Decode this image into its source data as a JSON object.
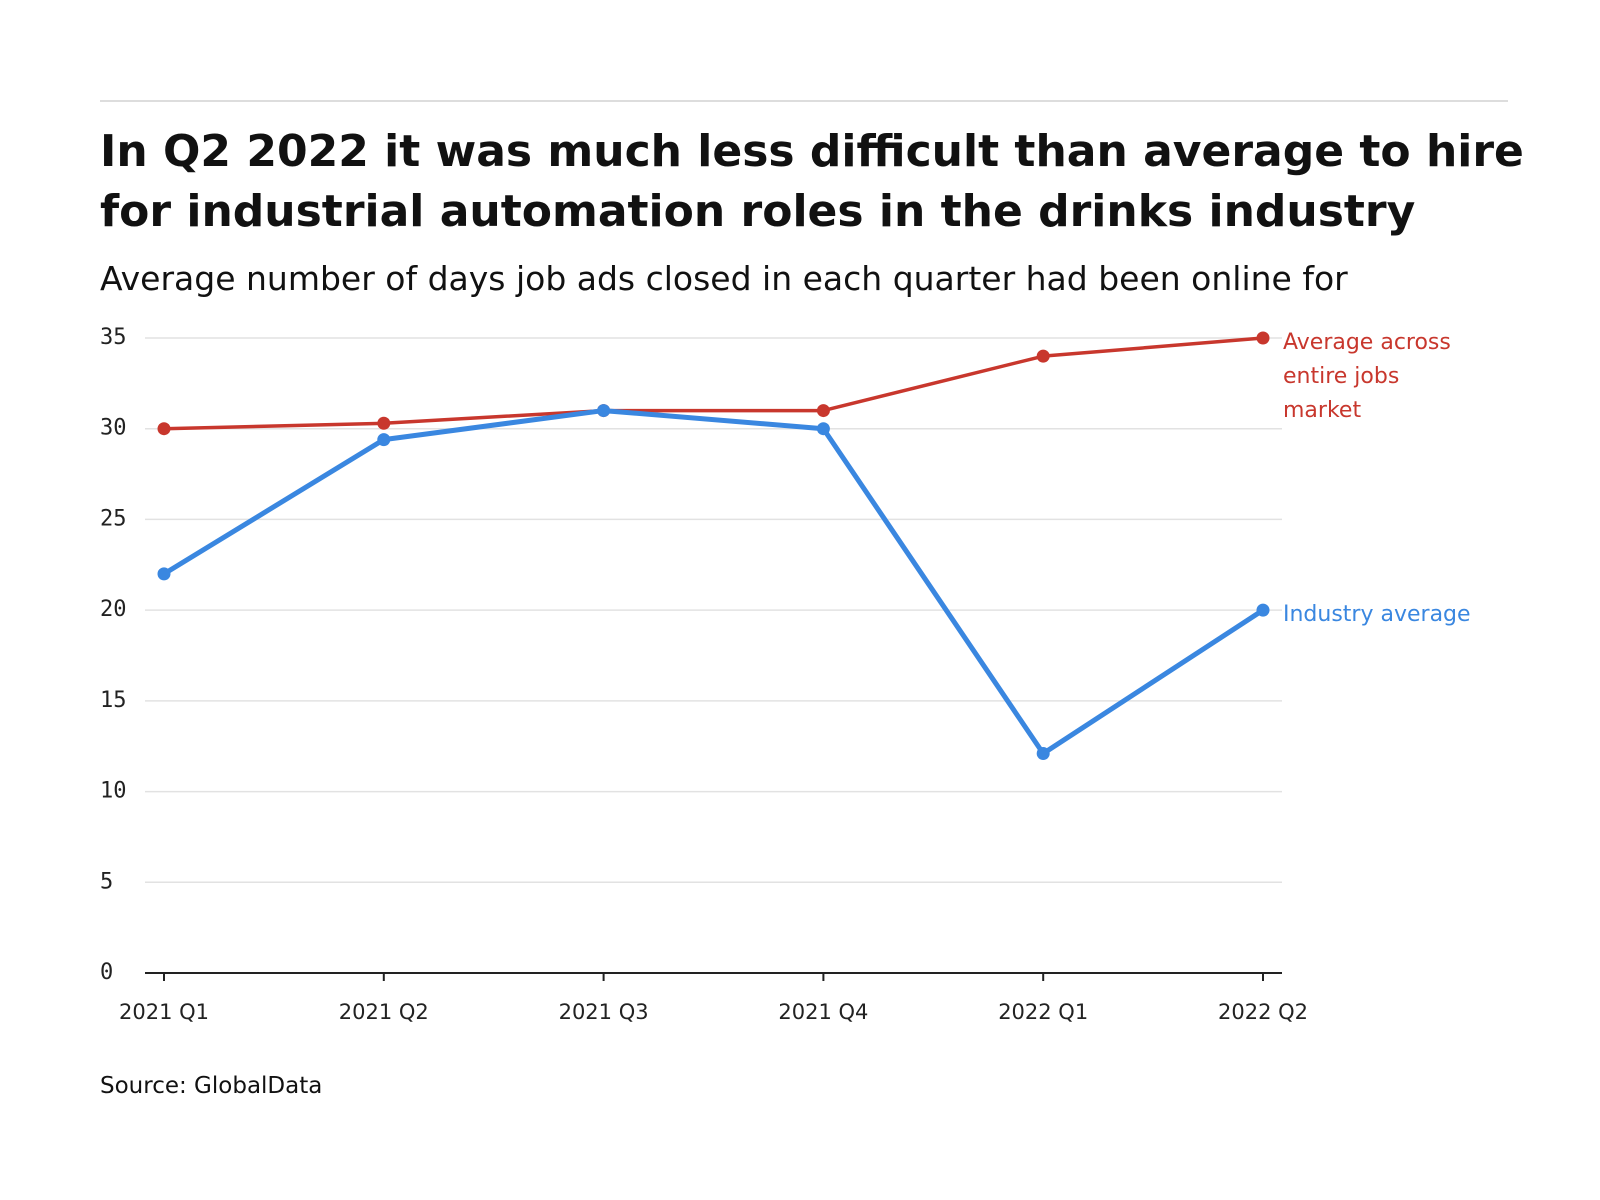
{
  "chart_data": {
    "type": "line",
    "title": "In Q2 2022 it was much less difficult than average to hire for industrial automation roles in the drinks industry",
    "subtitle": "Average number of days job ads closed in each quarter had been online for",
    "source": "Source: GlobalData",
    "categories": [
      "2021 Q1",
      "2021 Q2",
      "2021 Q3",
      "2021 Q4",
      "2022 Q1",
      "2022 Q2"
    ],
    "series": [
      {
        "name": "Average across entire jobs market",
        "color": "#c8372d",
        "values": [
          30,
          30.3,
          31,
          31,
          34,
          35
        ]
      },
      {
        "name": "Industry average",
        "color": "#3a87e0",
        "values": [
          22,
          29.4,
          31,
          30,
          12.1,
          20
        ]
      }
    ],
    "ylim": [
      0,
      35
    ],
    "yticks": [
      0,
      5,
      10,
      15,
      20,
      25,
      30,
      35
    ],
    "grid": true
  }
}
